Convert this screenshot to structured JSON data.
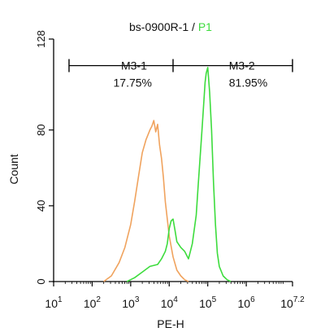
{
  "chart_data": {
    "type": "line",
    "title": {
      "sample": "bs-0900R-1",
      "separator": " / ",
      "gate": "P1"
    },
    "xlabel": "PE-H",
    "ylabel": "Count",
    "x_scale": "log10",
    "xlim": [
      1,
      7.2
    ],
    "ylim": [
      0,
      128
    ],
    "x_tick_labels": [
      {
        "base": "10",
        "exp": "1"
      },
      {
        "base": "10",
        "exp": "2"
      },
      {
        "base": "10",
        "exp": "3"
      },
      {
        "base": "10",
        "exp": "4"
      },
      {
        "base": "10",
        "exp": "5"
      },
      {
        "base": "10",
        "exp": "6"
      },
      {
        "base": "10",
        "exp": "7.2"
      }
    ],
    "y_ticks": [
      0,
      40,
      80,
      128
    ],
    "colors": {
      "control": "#f0a35e",
      "sample": "#3ddc3d",
      "gate_label_accent": "#3ddc3d",
      "axis": "#000000",
      "gate_line": "#000000"
    },
    "gates": [
      {
        "name": "M3-1",
        "percent": "17.75%",
        "from_log": 1.4,
        "to_log": 4.1
      },
      {
        "name": "M3-2",
        "percent": "81.95%",
        "from_log": 4.1,
        "to_log": 7.2
      }
    ],
    "series": [
      {
        "color_key": "control",
        "x_log": [
          2.3,
          2.5,
          2.7,
          2.85,
          3.0,
          3.1,
          3.2,
          3.3,
          3.4,
          3.5,
          3.55,
          3.6,
          3.65,
          3.7,
          3.75,
          3.8,
          3.85,
          3.9,
          3.95,
          4.0,
          4.1,
          4.2,
          4.3,
          4.4,
          4.5
        ],
        "values": [
          0,
          3,
          10,
          18,
          30,
          42,
          55,
          68,
          75,
          80,
          82,
          85,
          79,
          83,
          72,
          65,
          55,
          42,
          33,
          24,
          13,
          6,
          3,
          1,
          0
        ]
      },
      {
        "color_key": "sample",
        "x_log": [
          2.9,
          3.1,
          3.3,
          3.5,
          3.7,
          3.8,
          3.9,
          3.95,
          4.0,
          4.05,
          4.1,
          4.15,
          4.2,
          4.3,
          4.4,
          4.5,
          4.6,
          4.7,
          4.75,
          4.8,
          4.85,
          4.9,
          4.93,
          4.96,
          5.0,
          5.05,
          5.1,
          5.15,
          5.2,
          5.25,
          5.3,
          5.4,
          5.5,
          5.6
        ],
        "values": [
          0,
          2,
          5,
          8,
          9,
          12,
          16,
          20,
          28,
          32,
          33,
          27,
          21,
          18,
          16,
          12,
          20,
          35,
          50,
          65,
          80,
          95,
          105,
          110,
          113,
          100,
          80,
          52,
          30,
          15,
          8,
          3,
          1,
          0
        ]
      }
    ]
  }
}
